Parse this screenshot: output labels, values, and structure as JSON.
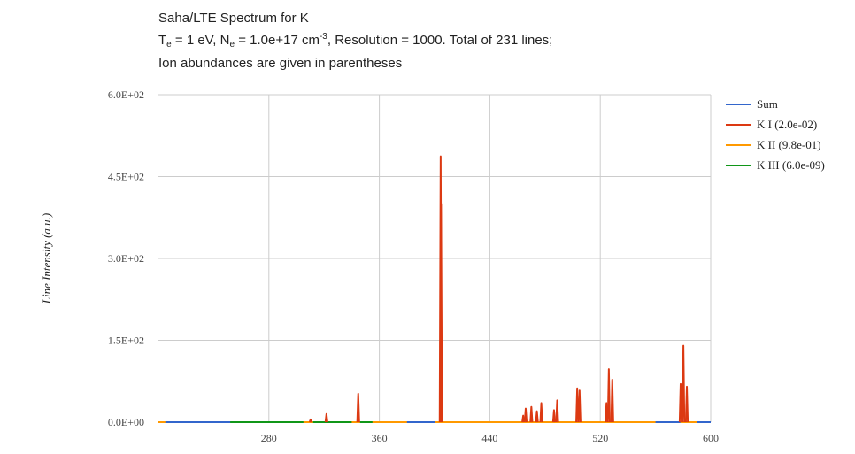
{
  "chart_data": {
    "type": "line",
    "title_line1": "Saha/LTE Spectrum for K",
    "title_line2": {
      "te_symbol": "T",
      "te_sub": "e",
      "te_value": " = 1 eV, N",
      "ne_sub": "e",
      "ne_value": " = 1.0e+17 cm",
      "ne_sup": "-3",
      "rest": ", Resolution = 1000. Total of 231 lines;"
    },
    "title_line3": "Ion abundances are given in parentheses",
    "xlabel": "",
    "ylabel": "Line Intensity (a.u.)",
    "xlim": [
      200,
      600
    ],
    "ylim": [
      0,
      600
    ],
    "x_ticks": [
      "280",
      "360",
      "440",
      "520",
      "600"
    ],
    "y_ticks": [
      "0.0E+00",
      "1.5E+02",
      "3.0E+02",
      "4.5E+02",
      "6.0E+02"
    ],
    "grid": true,
    "legend_position": "right",
    "series": [
      {
        "name": "Sum",
        "color": "#3366cc",
        "peaks": []
      },
      {
        "name": "K I (2.0e-02)",
        "color": "#dc3912",
        "peaks": [
          [
            310.2,
            5
          ],
          [
            321.7,
            15
          ],
          [
            344.7,
            52
          ],
          [
            404.4,
            487
          ],
          [
            404.7,
            400
          ],
          [
            464.2,
            12
          ],
          [
            466.0,
            25
          ],
          [
            470.1,
            28
          ],
          [
            474.1,
            20
          ],
          [
            477.3,
            35
          ],
          [
            486.5,
            22
          ],
          [
            488.8,
            40
          ],
          [
            503.3,
            62
          ],
          [
            505.0,
            58
          ],
          [
            524.5,
            35
          ],
          [
            526.2,
            97
          ],
          [
            528.7,
            78
          ],
          [
            578.2,
            70
          ],
          [
            580.2,
            140
          ],
          [
            582.7,
            65
          ]
        ]
      },
      {
        "name": "K II (9.8e-01)",
        "color": "#ff9900",
        "peaks": []
      },
      {
        "name": "K III (6.0e-09)",
        "color": "#109618",
        "peaks": []
      }
    ]
  }
}
